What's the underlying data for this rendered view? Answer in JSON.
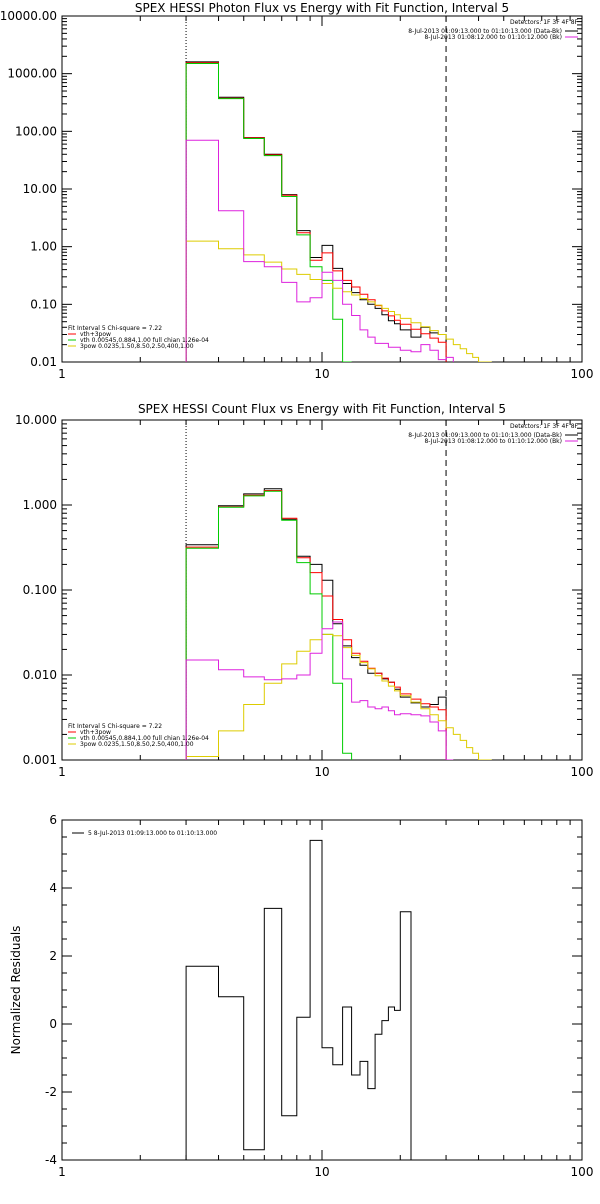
{
  "chart_data": [
    {
      "type": "line",
      "subtype": "step",
      "title": "SPEX HESSI Photon Flux vs Energy with Fit Function, Interval 5",
      "xscale": "log",
      "yscale": "log",
      "xlim": [
        1,
        100
      ],
      "ylim": [
        0.01,
        10000
      ],
      "xticks": [
        "1",
        "10",
        "100"
      ],
      "yticks": [
        "10000.00",
        "1000.00",
        "100.00",
        "10.00",
        "1.00",
        "0.10",
        "0.01"
      ],
      "ytickvalues": [
        10000,
        1000,
        100,
        10,
        1,
        0.1,
        0.01
      ],
      "vlines": [
        {
          "x": 3,
          "style": "dotted"
        },
        {
          "x": 30,
          "style": "dashed"
        }
      ],
      "legend_top_right": {
        "header": "Detectors: 1F 3F 4F 8F",
        "entries": [
          {
            "text": "8-Jul-2013 01:09:13.000 to 01:10:13.000 (Data-Bk)",
            "color": "#000000"
          },
          {
            "text": "8-Jul-2013 01:08:12.000 to 01:10:12.000 (Bk)",
            "color": "#dd22dd"
          }
        ]
      },
      "legend_bottom_left": {
        "header": "Fit Interval 5   Chi-square = 7.22",
        "entries": [
          {
            "text": "vth+3pow",
            "color": "#ff0000"
          },
          {
            "text": "vth 0.00545,0.884,1.00  full chian 1.26e-04",
            "color": "#00cc00"
          },
          {
            "text": "3pow 0.0235,1.50,8.50,2.50,400,1.00",
            "color": "#ddcc00"
          }
        ]
      },
      "edges": [
        3,
        4,
        5,
        6,
        7,
        8,
        9,
        10,
        11,
        12,
        13,
        14,
        15,
        16,
        17,
        18,
        19,
        20,
        22,
        24,
        26,
        28,
        30,
        32,
        34,
        36,
        38,
        40,
        45
      ],
      "series": [
        {
          "name": "Data-Bk",
          "color": "#000000",
          "values": [
            1600,
            390,
            78,
            40,
            8,
            1.9,
            0.65,
            1.05,
            0.42,
            0.23,
            0.16,
            0.12,
            0.1,
            0.085,
            0.066,
            0.052,
            0.046,
            0.036,
            0.027,
            0.04,
            0.032,
            0.03,
            null,
            null,
            null,
            null,
            null,
            null
          ]
        },
        {
          "name": "vth+3pow",
          "color": "#ff0000",
          "values": [
            1550,
            375,
            77,
            39,
            7.8,
            1.75,
            0.58,
            0.78,
            0.38,
            0.26,
            0.2,
            0.15,
            0.12,
            0.095,
            0.077,
            0.063,
            0.053,
            0.045,
            0.037,
            0.031,
            0.026,
            0.022,
            null,
            null,
            null,
            null,
            null,
            null
          ]
        },
        {
          "name": "vth",
          "color": "#00cc00",
          "values": [
            1500,
            370,
            75,
            38,
            7.4,
            1.6,
            0.45,
            0.26,
            0.055,
            0.009,
            null,
            null,
            null,
            null,
            null,
            null,
            null,
            null,
            null,
            null,
            null,
            null,
            null,
            null,
            null,
            null,
            null,
            null
          ]
        },
        {
          "name": "3pow",
          "color": "#ddcc00",
          "values": [
            1.25,
            0.92,
            0.72,
            0.54,
            0.41,
            0.33,
            0.27,
            0.23,
            0.19,
            0.165,
            0.145,
            0.126,
            0.11,
            0.097,
            0.085,
            0.075,
            0.066,
            0.057,
            0.048,
            0.041,
            0.035,
            0.03,
            0.025,
            0.02,
            0.017,
            0.014,
            0.012,
            0.009
          ]
        },
        {
          "name": "Bk",
          "color": "#dd22dd",
          "values": [
            70,
            4.2,
            0.55,
            0.45,
            0.24,
            0.11,
            0.13,
            0.36,
            0.26,
            0.1,
            0.064,
            0.036,
            0.027,
            0.021,
            0.021,
            0.018,
            0.018,
            0.016,
            0.015,
            0.02,
            0.016,
            0.011,
            0.012,
            null,
            null,
            null,
            null,
            null
          ]
        }
      ]
    },
    {
      "type": "line",
      "subtype": "step",
      "title": "SPEX HESSI Count Flux vs Energy with Fit Function, Interval 5",
      "xscale": "log",
      "yscale": "log",
      "xlim": [
        1,
        100
      ],
      "ylim": [
        0.001,
        10
      ],
      "xticks": [
        "1",
        "10",
        "100"
      ],
      "yticks": [
        "10.000",
        "1.000",
        "0.100",
        "0.010",
        "0.001"
      ],
      "ytickvalues": [
        10,
        1,
        0.1,
        0.01,
        0.001
      ],
      "vlines": [
        {
          "x": 3,
          "style": "dotted"
        },
        {
          "x": 30,
          "style": "dashed"
        }
      ],
      "legend_top_right": {
        "header": "Detectors: 1F 3F 4F 8F",
        "entries": [
          {
            "text": "8-Jul-2013 01:09:13.000 to 01:10:13.000 (Data-Bk)",
            "color": "#000000"
          },
          {
            "text": "8-Jul-2013 01:08:12.000 to 01:10:12.000 (Bk)",
            "color": "#dd22dd"
          }
        ]
      },
      "legend_bottom_left": {
        "header": "Fit Interval 5   Chi-square = 7.22",
        "entries": [
          {
            "text": "vth+3pow",
            "color": "#ff0000"
          },
          {
            "text": "vth 0.00545,0.884,1.00  full chian 1.26e-04",
            "color": "#00cc00"
          },
          {
            "text": "3pow 0.0235,1.50,8.50,2.50,400,1.00",
            "color": "#ddcc00"
          }
        ]
      },
      "edges": [
        3,
        4,
        5,
        6,
        7,
        8,
        9,
        10,
        11,
        12,
        13,
        14,
        15,
        16,
        17,
        18,
        19,
        20,
        22,
        24,
        26,
        28,
        30,
        32,
        34,
        36,
        38,
        40,
        45
      ],
      "series": [
        {
          "name": "Data-Bk",
          "color": "#000000",
          "values": [
            0.34,
            0.98,
            1.35,
            1.55,
            0.68,
            0.25,
            0.2,
            0.13,
            0.04,
            0.022,
            0.016,
            0.013,
            0.0105,
            0.0105,
            0.009,
            0.0082,
            0.0068,
            0.0055,
            0.0047,
            0.0042,
            0.0045,
            0.0055,
            null,
            null,
            null,
            null,
            null,
            null
          ]
        },
        {
          "name": "vth+3pow",
          "color": "#ff0000",
          "values": [
            0.32,
            0.95,
            1.3,
            1.48,
            0.7,
            0.24,
            0.16,
            0.085,
            0.045,
            0.026,
            0.018,
            0.0145,
            0.012,
            0.0105,
            0.0092,
            0.0082,
            0.0072,
            0.006,
            0.0052,
            0.0046,
            0.0042,
            0.0039,
            null,
            null,
            null,
            null,
            null,
            null
          ]
        },
        {
          "name": "vth",
          "color": "#00cc00",
          "values": [
            0.31,
            0.94,
            1.28,
            1.45,
            0.66,
            0.21,
            0.09,
            0.03,
            0.008,
            0.0012,
            null,
            null,
            null,
            null,
            null,
            null,
            null,
            null,
            null,
            null,
            null,
            null,
            null,
            null,
            null,
            null,
            null,
            null
          ]
        },
        {
          "name": "3pow",
          "color": "#ddcc00",
          "values": [
            0.0011,
            0.0022,
            0.0045,
            0.008,
            0.0135,
            0.019,
            0.026,
            0.03,
            0.029,
            0.021,
            0.017,
            0.014,
            0.0118,
            0.0098,
            0.0085,
            0.0074,
            0.0065,
            0.0057,
            0.0048,
            0.004,
            0.0034,
            0.0029,
            0.0024,
            0.002,
            0.0017,
            0.0014,
            0.0012,
            0.001
          ]
        },
        {
          "name": "Bk",
          "color": "#dd22dd",
          "values": [
            0.015,
            0.0115,
            0.0095,
            0.0088,
            0.009,
            0.01,
            0.018,
            0.035,
            0.042,
            0.009,
            0.0048,
            0.005,
            0.0042,
            0.004,
            0.0042,
            0.0038,
            0.0034,
            0.0035,
            0.0034,
            0.0033,
            0.0028,
            0.0022,
            0.001,
            null,
            null,
            null,
            null,
            null
          ]
        }
      ]
    },
    {
      "type": "line",
      "subtype": "step",
      "title": "",
      "ylabel": "Normalized Residuals",
      "xscale": "log",
      "yscale": "linear",
      "xlim": [
        1,
        100
      ],
      "ylim": [
        -4,
        6
      ],
      "xticks": [
        "1",
        "10",
        "100"
      ],
      "yticks": [
        "6",
        "4",
        "2",
        "0",
        "-2",
        "-4"
      ],
      "ytickvalues": [
        6,
        4,
        2,
        0,
        -2,
        -4
      ],
      "legend_top_left": {
        "entries": [
          {
            "text": "5  8-Jul-2013 01:09:13.000 to 01:10:13.000",
            "color": "#000000"
          }
        ]
      },
      "edges": [
        3,
        4,
        5,
        6,
        7,
        8,
        9,
        10,
        11,
        12,
        13,
        14,
        15,
        16,
        17,
        18,
        19,
        20,
        22,
        24,
        26,
        28,
        30
      ],
      "series": [
        {
          "name": "",
          "color": "#000000",
          "values": [
            1.7,
            0.8,
            -3.7,
            3.4,
            -2.7,
            0.2,
            5.4,
            -0.7,
            -1.2,
            0.5,
            -1.5,
            -1.1,
            -1.9,
            -0.3,
            0.1,
            0.5,
            0.4,
            3.3,
            null,
            null,
            null,
            null
          ]
        }
      ]
    }
  ]
}
